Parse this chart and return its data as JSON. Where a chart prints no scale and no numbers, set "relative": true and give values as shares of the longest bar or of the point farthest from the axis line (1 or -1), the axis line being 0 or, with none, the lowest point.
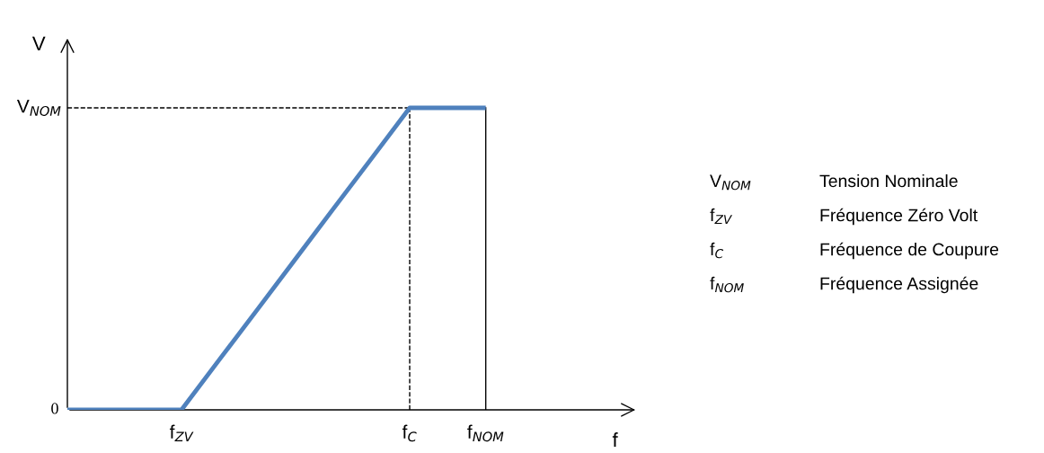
{
  "chart_data": {
    "type": "line",
    "relative": true,
    "xlabel": "f",
    "ylabel": "V",
    "categories": [
      null,
      null,
      null,
      "f$_{ZV}$",
      null,
      null,
      null,
      null,
      null,
      "f$_{C}$",
      null,
      "f$_{NOM}$",
      null,
      null,
      null,
      null
    ],
    "series": [
      {
        "color": "#4f81bd",
        "values": [
          0,
          0,
          0,
          0,
          0.167,
          0.333,
          0.5,
          0.667,
          0.833,
          1,
          1,
          1,
          null,
          null,
          null,
          null
        ]
      }
    ],
    "ref_lines": [
      {
        "axis": "y",
        "value": 1,
        "label": "V$_{NOM}$",
        "color": "#000000",
        "line_style": "dashed"
      },
      {
        "axis": "x",
        "value": "f$_{C}$",
        "color": "#000000",
        "line_style": "dashed"
      },
      {
        "axis": "x",
        "value": "f$_{NOM}$",
        "color": "#000000",
        "line_style": "solid"
      }
    ],
    "annotations": [
      "0",
      "V$_{NOM}$",
      "Tension Nominale",
      "f$_{ZV}$",
      "Fréquence Zéro Volt",
      "f$_{C}$",
      "Fréquence de Coupure",
      "f$_{NOM}$",
      "Fréquence Assignée"
    ],
    "grid": false,
    "legend": false,
    "marker": "none",
    "line_style": "solid"
  }
}
